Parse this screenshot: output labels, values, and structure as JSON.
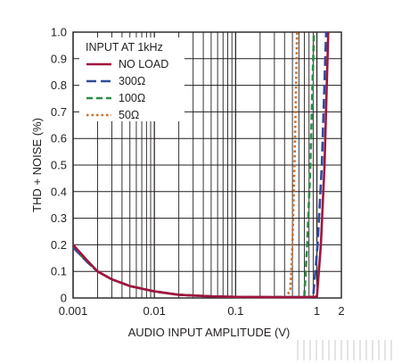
{
  "chart_data": {
    "type": "line",
    "title": "",
    "xlabel": "AUDIO INPUT AMPLITUDE (V)",
    "ylabel": "THD + NOISE (%)",
    "xscale": "log",
    "xlim": [
      0.001,
      2
    ],
    "ylim": [
      0,
      1.0
    ],
    "grid": true,
    "x_tick_labels": [
      "0.001",
      "0.01",
      "0.1",
      "1",
      "2"
    ],
    "x_tick_values": [
      0.001,
      0.01,
      0.1,
      1,
      2
    ],
    "y_tick_labels": [
      "0",
      "0.1",
      "0.2",
      "0.3",
      "0.4",
      "0.5",
      "0.6",
      "0.7",
      "0.8",
      "0.9",
      "1.0"
    ],
    "y_tick_values": [
      0,
      0.1,
      0.2,
      0.3,
      0.4,
      0.5,
      0.6,
      0.7,
      0.8,
      0.9,
      1.0
    ],
    "legend": {
      "title": "INPUT AT 1kHz",
      "placement": "top-left"
    },
    "series": [
      {
        "name": "NO LOAD",
        "color": "#a0153e",
        "dash": "solid",
        "points": [
          [
            0.001,
            0.2
          ],
          [
            0.0015,
            0.14
          ],
          [
            0.002,
            0.1
          ],
          [
            0.003,
            0.07
          ],
          [
            0.005,
            0.045
          ],
          [
            0.01,
            0.025
          ],
          [
            0.02,
            0.012
          ],
          [
            0.05,
            0.006
          ],
          [
            0.1,
            0.004
          ],
          [
            0.3,
            0.003
          ],
          [
            0.7,
            0.003
          ],
          [
            1.0,
            0.005
          ],
          [
            1.12,
            0.2
          ],
          [
            1.24,
            0.5
          ],
          [
            1.38,
            1.0
          ]
        ]
      },
      {
        "name": "300Ω",
        "color": "#2e4d9b",
        "dash": "long-dash",
        "points": [
          [
            0.001,
            0.19
          ],
          [
            0.0015,
            0.135
          ],
          [
            0.002,
            0.1
          ],
          [
            0.003,
            0.07
          ],
          [
            0.005,
            0.045
          ],
          [
            0.01,
            0.025
          ],
          [
            0.02,
            0.012
          ],
          [
            0.05,
            0.006
          ],
          [
            0.1,
            0.004
          ],
          [
            0.3,
            0.003
          ],
          [
            0.8,
            0.003
          ],
          [
            0.9,
            0.005
          ],
          [
            1.02,
            0.2
          ],
          [
            1.15,
            0.5
          ],
          [
            1.3,
            1.0
          ]
        ]
      },
      {
        "name": "100Ω",
        "color": "#2e8b47",
        "dash": "dash",
        "points": [
          [
            0.001,
            0.19
          ],
          [
            0.0015,
            0.135
          ],
          [
            0.002,
            0.1
          ],
          [
            0.003,
            0.07
          ],
          [
            0.005,
            0.045
          ],
          [
            0.01,
            0.025
          ],
          [
            0.02,
            0.012
          ],
          [
            0.05,
            0.006
          ],
          [
            0.1,
            0.004
          ],
          [
            0.3,
            0.003
          ],
          [
            0.6,
            0.003
          ],
          [
            0.7,
            0.006
          ],
          [
            0.76,
            0.2
          ],
          [
            0.83,
            0.5
          ],
          [
            0.92,
            1.0
          ]
        ]
      },
      {
        "name": "50Ω",
        "color": "#c8702c",
        "dash": "dot",
        "points": [
          [
            0.001,
            0.19
          ],
          [
            0.0015,
            0.135
          ],
          [
            0.002,
            0.1
          ],
          [
            0.003,
            0.07
          ],
          [
            0.005,
            0.045
          ],
          [
            0.01,
            0.025
          ],
          [
            0.02,
            0.012
          ],
          [
            0.05,
            0.006
          ],
          [
            0.1,
            0.004
          ],
          [
            0.3,
            0.003
          ],
          [
            0.42,
            0.004
          ],
          [
            0.47,
            0.03
          ],
          [
            0.5,
            0.2
          ],
          [
            0.53,
            0.5
          ],
          [
            0.57,
            1.0
          ]
        ]
      }
    ]
  }
}
